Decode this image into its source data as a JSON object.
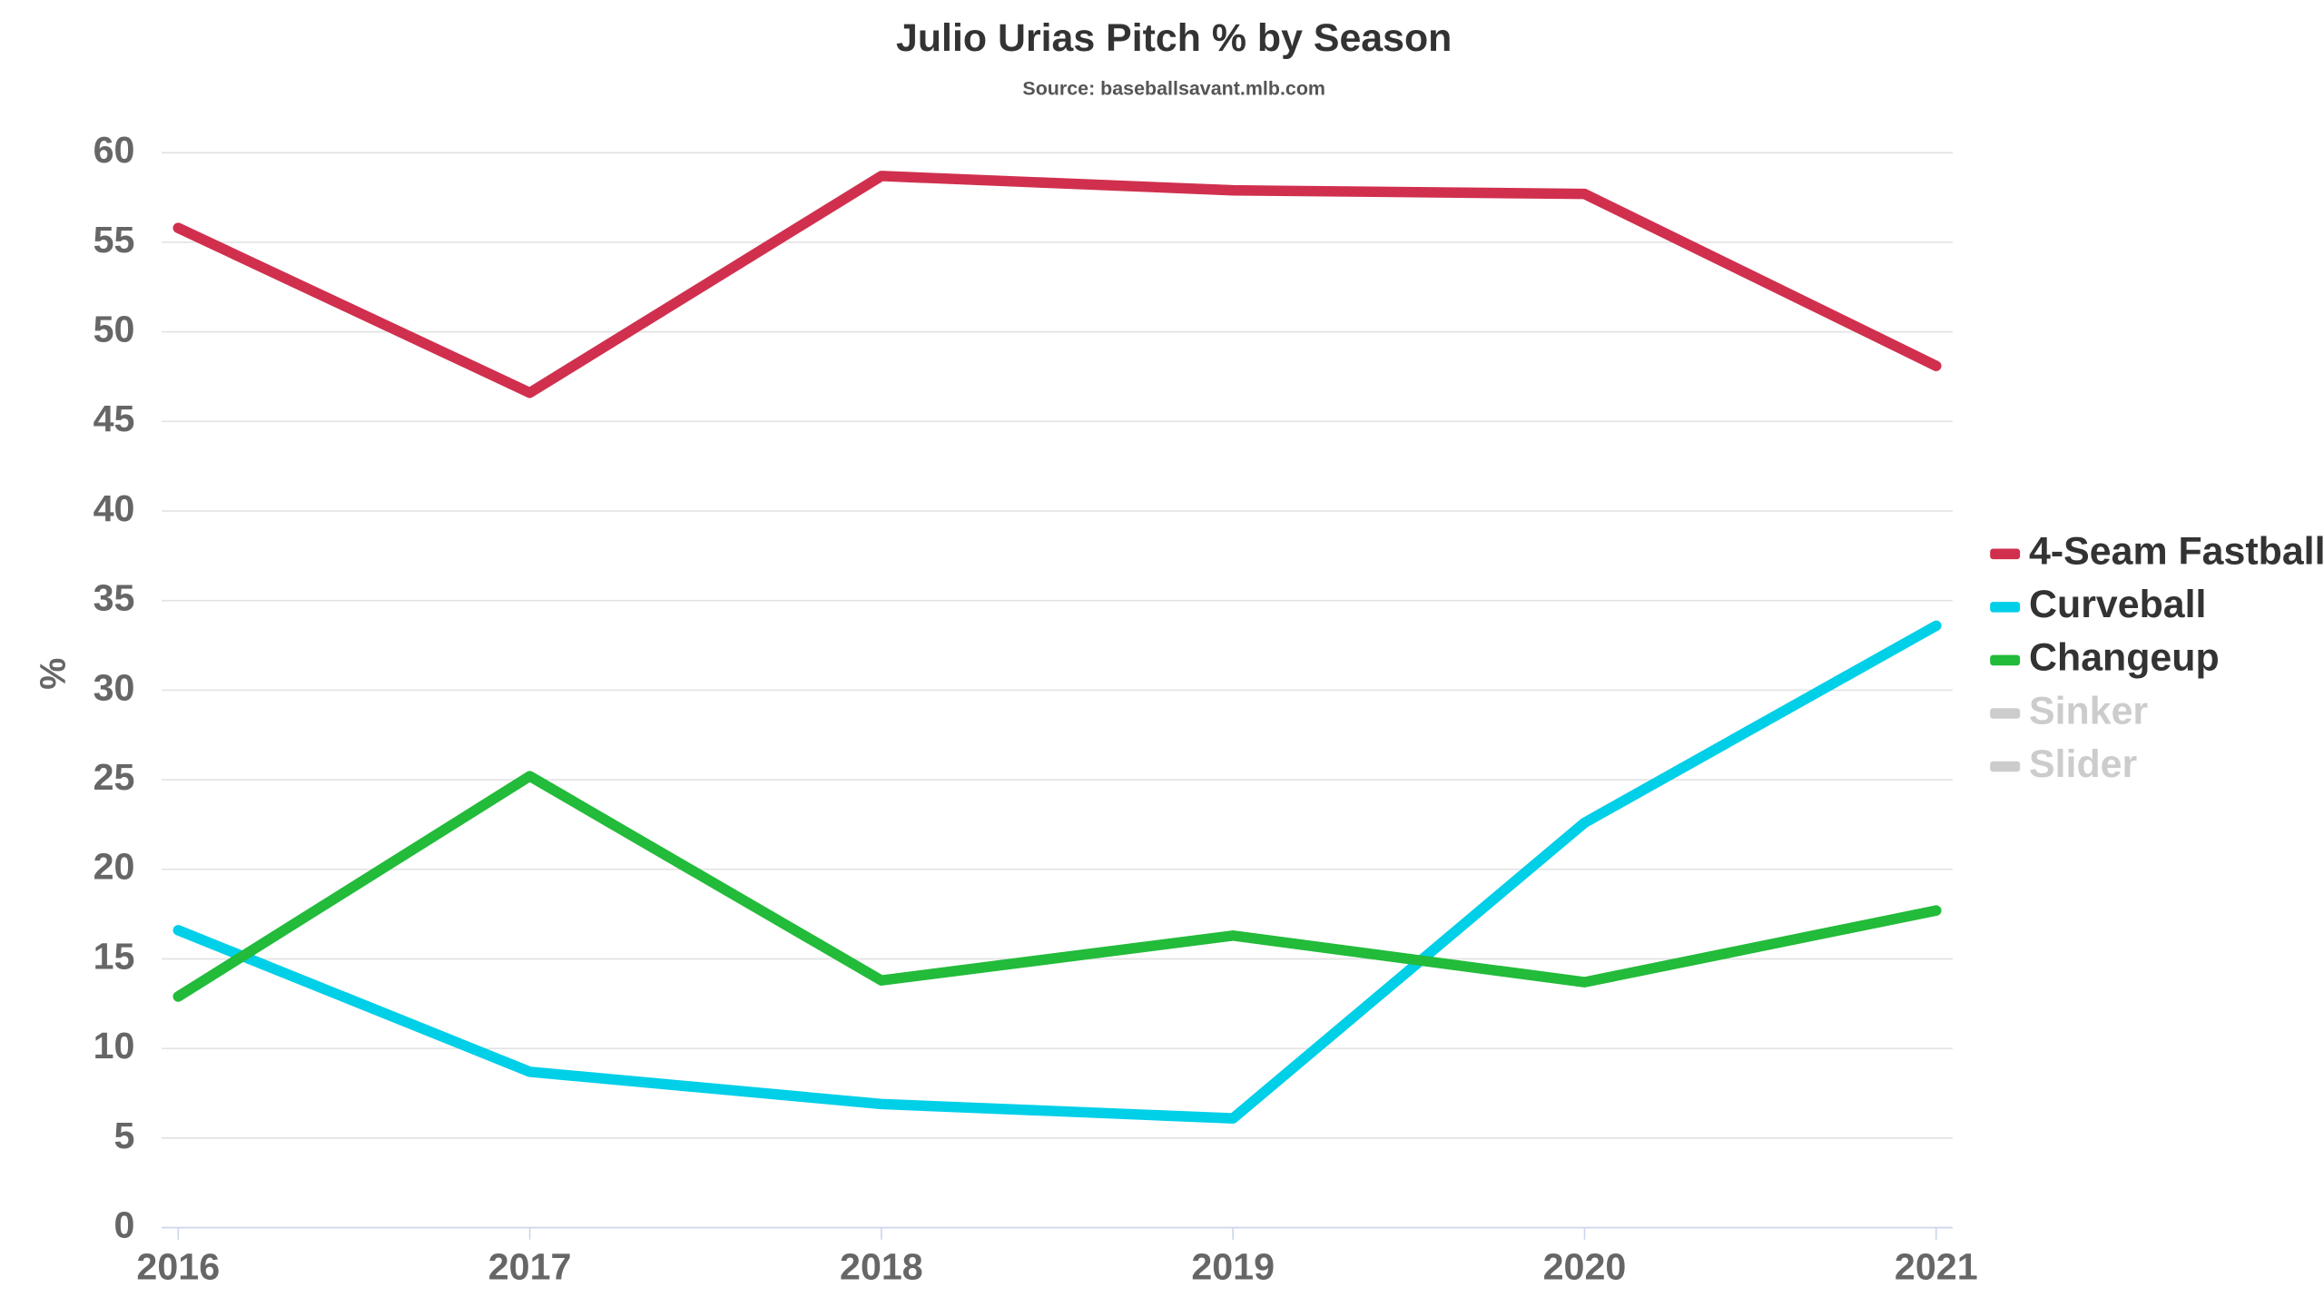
{
  "chart_data": {
    "type": "line",
    "title": "Julio Urias Pitch % by Season",
    "subtitle": "Source: baseballsavant.mlb.com",
    "y_label": "%",
    "categories": [
      "2016",
      "2017",
      "2018",
      "2019",
      "2020",
      "2021"
    ],
    "series": [
      {
        "name": "4-Seam Fastball",
        "color": "#d0304e",
        "values": [
          55.8,
          46.6,
          58.7,
          57.9,
          57.7,
          48.1
        ]
      },
      {
        "name": "Curveball",
        "color": "#00cfe8",
        "values": [
          16.6,
          8.7,
          6.9,
          6.1,
          22.6,
          33.6
        ]
      },
      {
        "name": "Changeup",
        "color": "#22bb3a",
        "values": [
          12.9,
          25.2,
          13.8,
          16.3,
          13.7,
          17.7
        ]
      },
      {
        "name": "Sinker",
        "color": "#cccccc",
        "values": [
          null,
          null,
          null,
          null,
          null,
          null
        ]
      },
      {
        "name": "Slider",
        "color": "#cccccc",
        "values": [
          null,
          null,
          null,
          null,
          null,
          null
        ]
      }
    ],
    "ylim": [
      0,
      60
    ],
    "yticks": [
      0,
      5,
      10,
      15,
      20,
      25,
      30,
      35,
      40,
      45,
      50,
      55,
      60
    ],
    "grid": true,
    "legend": "right"
  }
}
